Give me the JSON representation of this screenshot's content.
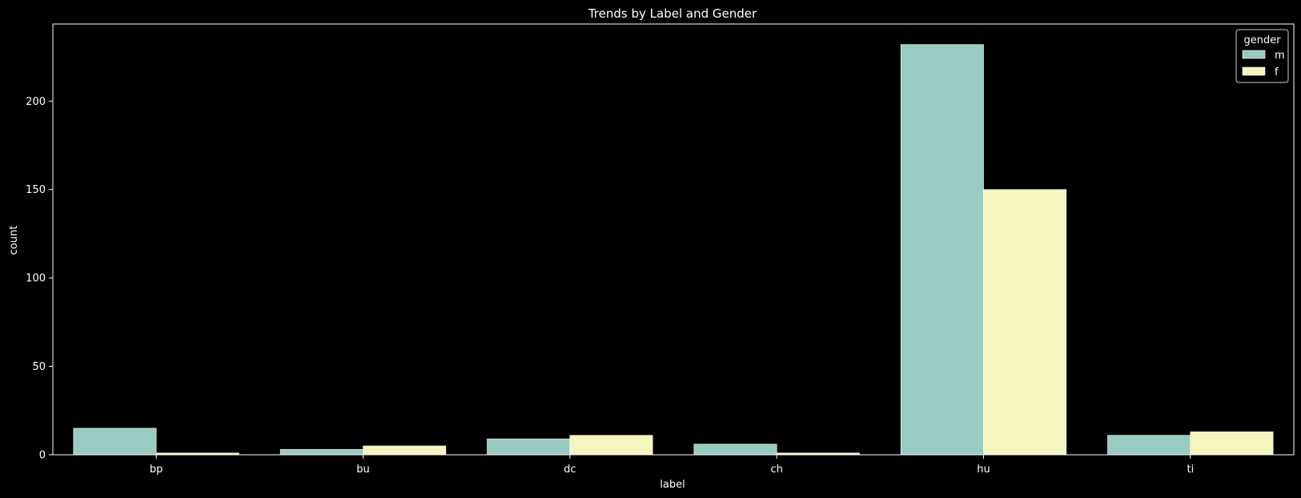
{
  "chart_data": {
    "type": "bar",
    "title": "Trends by Label and Gender",
    "xlabel": "label",
    "ylabel": "count",
    "categories": [
      "bp",
      "bu",
      "dc",
      "ch",
      "hu",
      "ti"
    ],
    "series": [
      {
        "name": "m",
        "values": [
          15,
          3,
          9,
          6,
          232,
          11
        ],
        "color": "#99cbc2"
      },
      {
        "name": "f",
        "values": [
          1,
          5,
          11,
          1,
          150,
          13
        ],
        "color": "#f5f5bf"
      }
    ],
    "ylim": [
      0,
      243.6
    ],
    "yticks": [
      0,
      50,
      100,
      150,
      200
    ],
    "grid": false,
    "legend": {
      "title": "gender",
      "placement": "top-right"
    },
    "background": "#000000",
    "foreground": "#ffffff"
  }
}
